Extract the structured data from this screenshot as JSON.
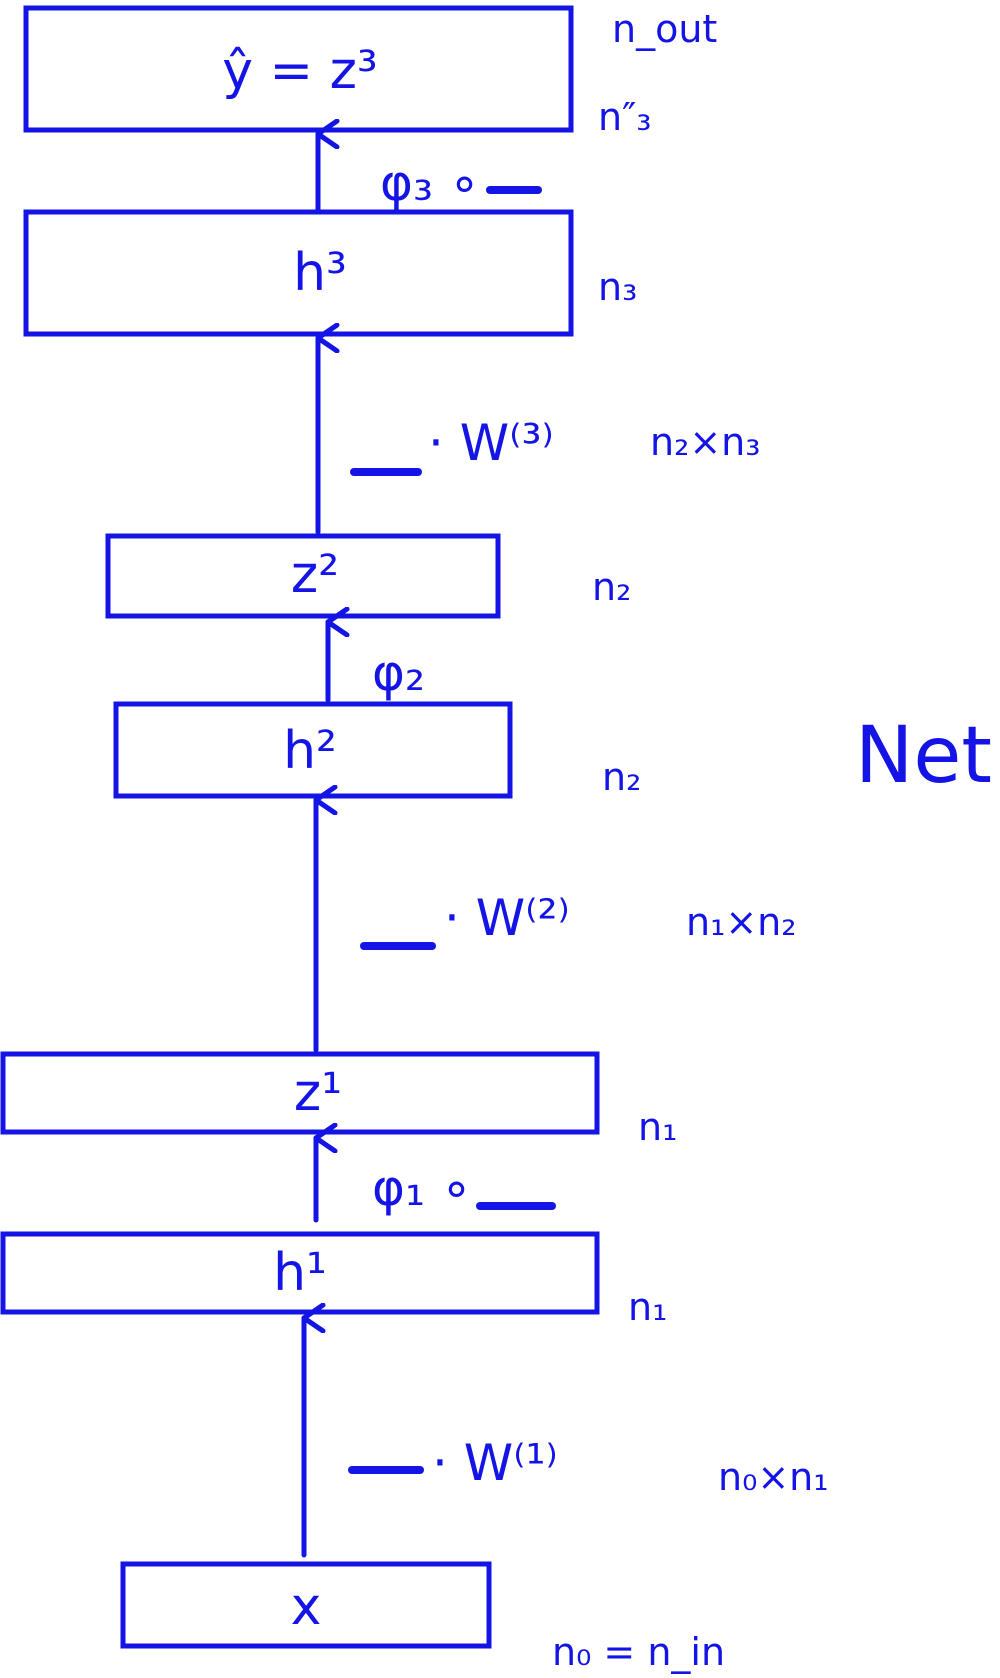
{
  "title": "Net",
  "nodes": {
    "output": {
      "label": "ŷ = z³",
      "dim_top": "n_out",
      "dim_bottom": "n″₃"
    },
    "h3": {
      "label": "h³",
      "dim": "n₃"
    },
    "z2": {
      "label": "z²",
      "dim": "n₂"
    },
    "h2": {
      "label": "h²",
      "dim": "n₂"
    },
    "z1": {
      "label": "z¹",
      "dim": "n₁"
    },
    "h1": {
      "label": "h¹",
      "dim": "n₁"
    },
    "x": {
      "label": "x",
      "dim": "n₀ = n_in"
    }
  },
  "edges": {
    "phi3": {
      "op": "φ₃ ∘"
    },
    "w3": {
      "op": "· W⁽³⁾",
      "dim": "n₂×n₃"
    },
    "phi2": {
      "op": "φ₂"
    },
    "w2": {
      "op": "· W⁽²⁾",
      "dim": "n₁×n₂"
    },
    "phi1": {
      "op": "φ₁ ∘"
    },
    "w1": {
      "op": "· W⁽¹⁾",
      "dim": "n₀×n₁"
    }
  }
}
